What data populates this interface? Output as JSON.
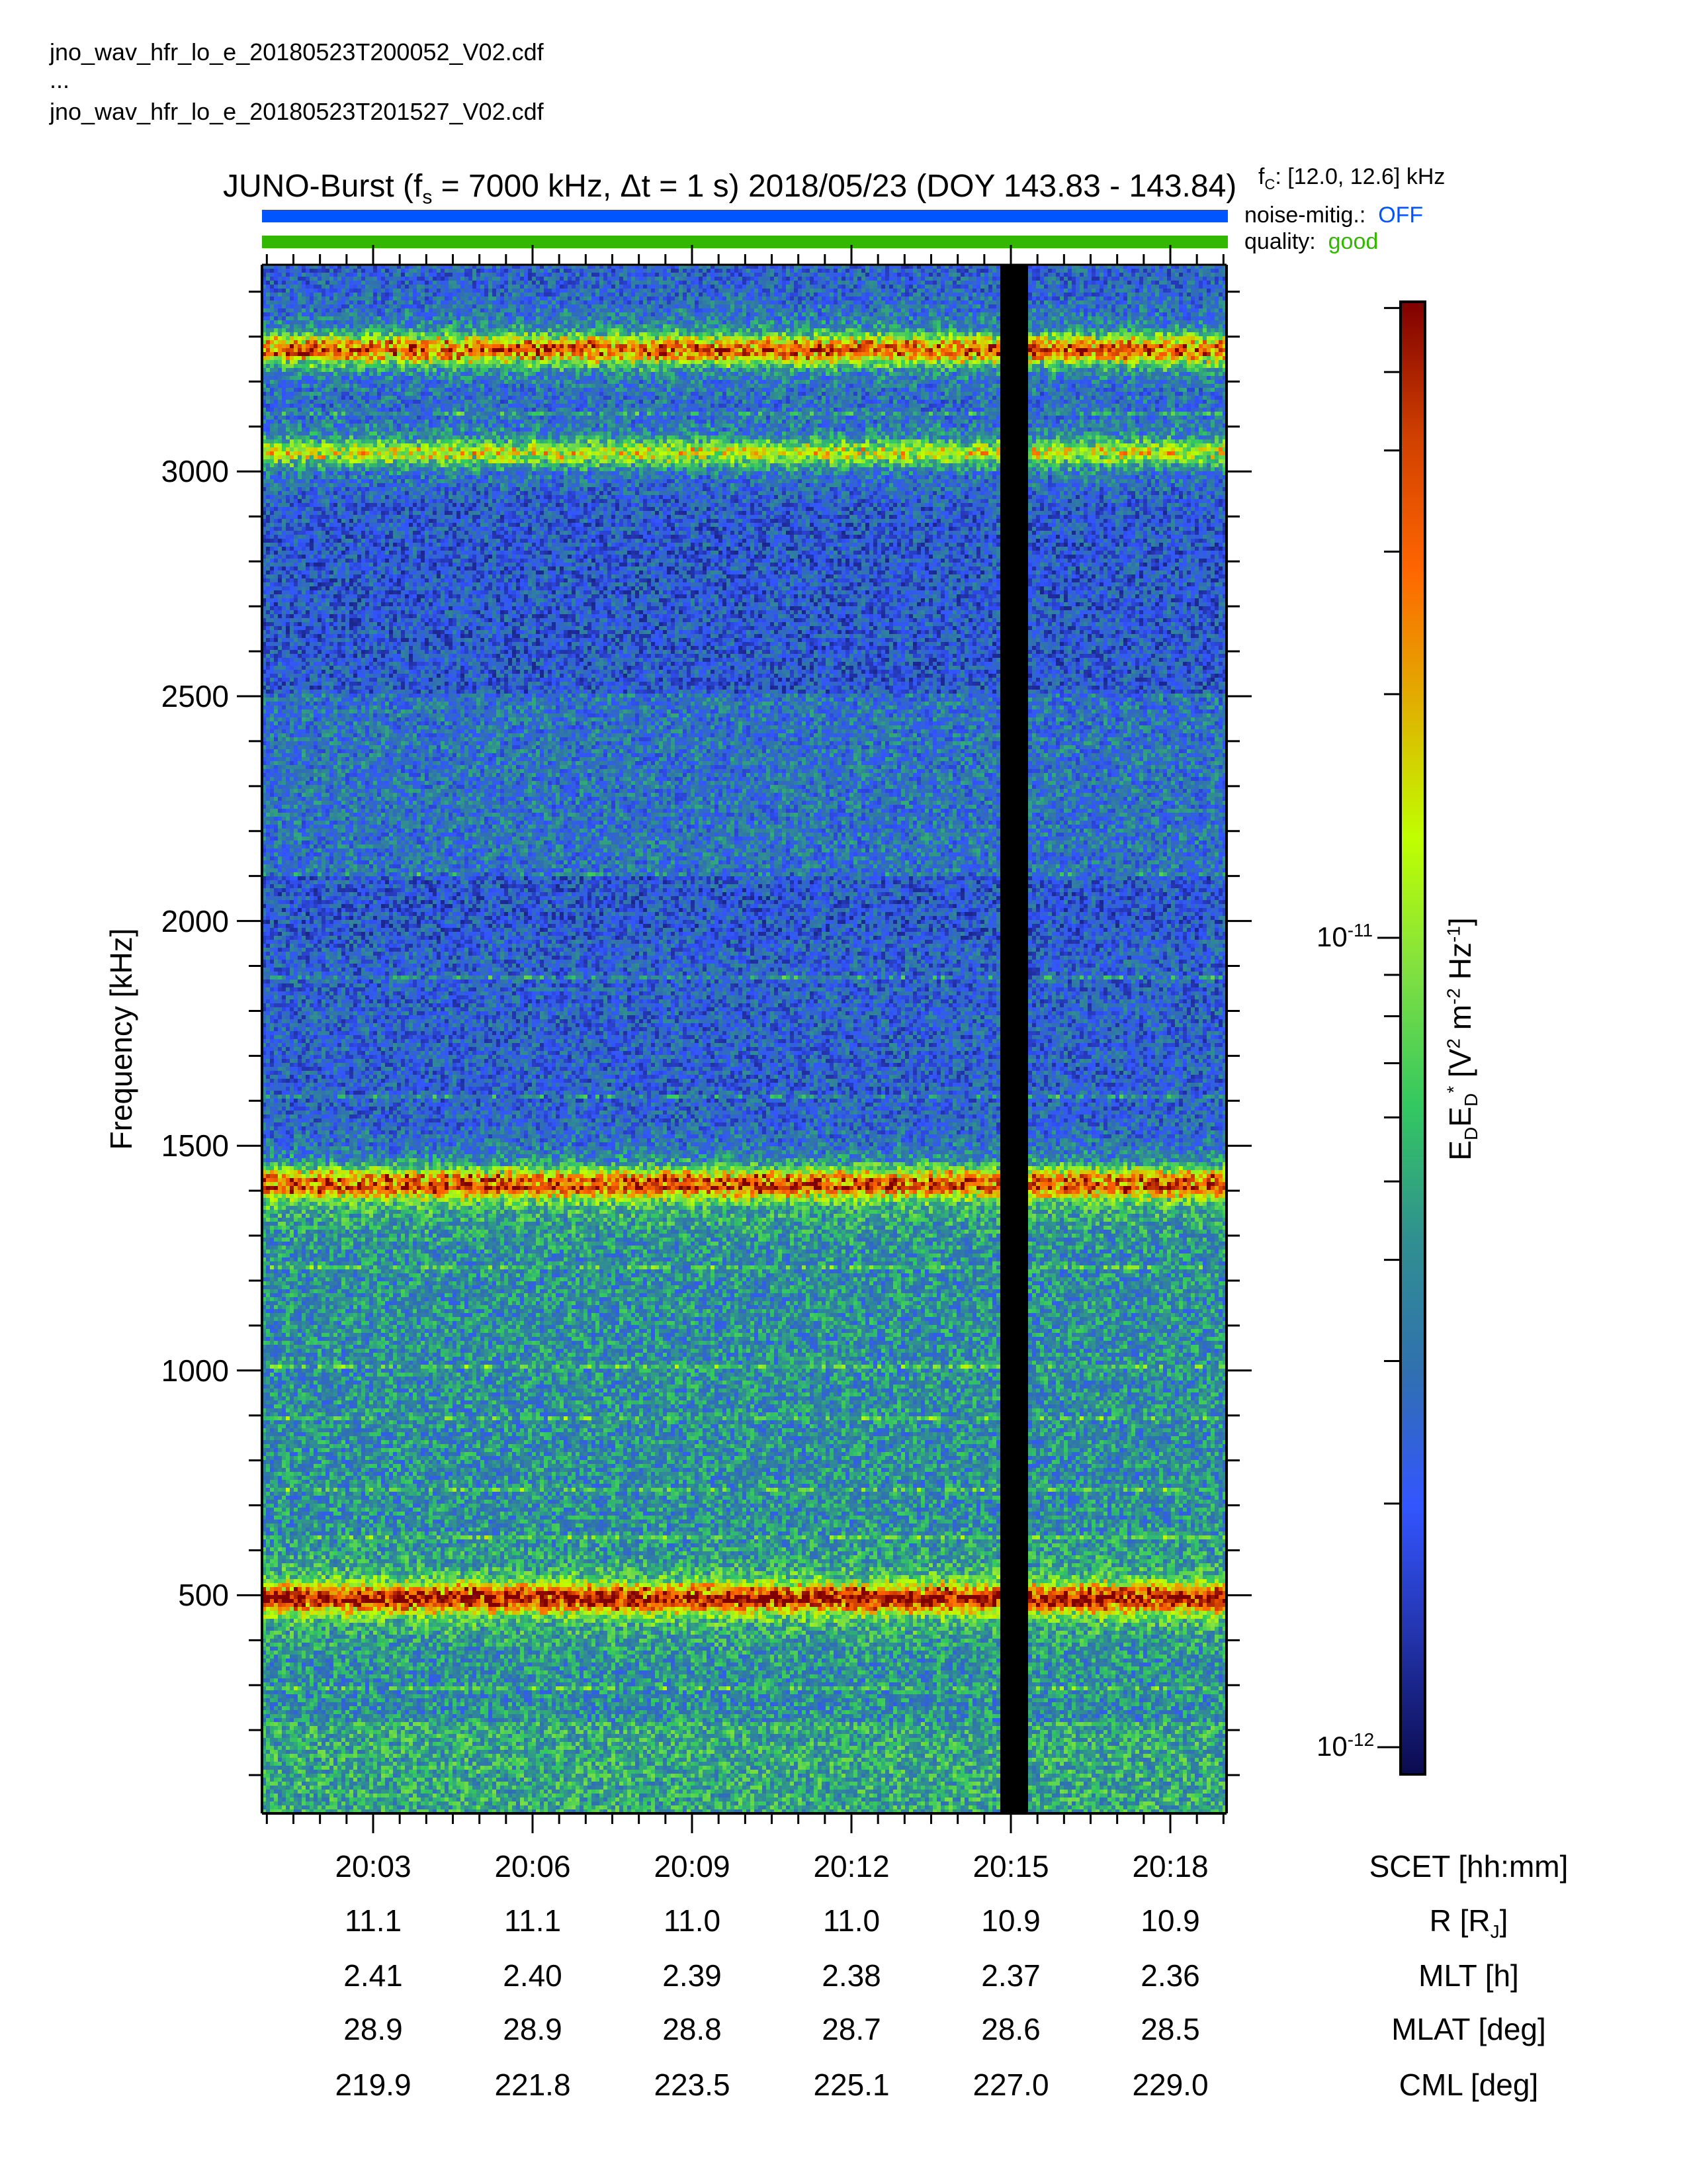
{
  "files": [
    "jno_wav_hfr_lo_e_20180523T200052_V02.cdf",
    "...",
    "jno_wav_hfr_lo_e_20180523T201527_V02.cdf"
  ],
  "title": {
    "part1": "JUNO-Burst (f",
    "sub": "s",
    "part2": " = 7000 kHz, Δt = 1 s)  2018/05/23 (DOY 143.83 - 143.84)"
  },
  "side": {
    "fc_label": "f",
    "fc_sub": "C",
    "fc_value": ": [12.0, 12.6] kHz",
    "noise_label": "noise-mitig.:",
    "noise_value": "OFF",
    "quality_label": "quality:",
    "quality_value": "good"
  },
  "colors": {
    "noise": "#0055ff",
    "quality": "#33b800"
  },
  "chart_data": {
    "type": "heatmap",
    "title": "JUNO-Burst (fs = 7000 kHz, Δt = 1 s) 2018/05/23 (DOY 143.83 - 143.84)",
    "xlabel": "SCET [hh:mm]",
    "ylabel": "Frequency [kHz]",
    "ylim": [
      0,
      3460
    ],
    "xlim_minutes": [
      -2.1,
      16.05
    ],
    "yticks": [
      500,
      1000,
      1500,
      2000,
      2500,
      3000
    ],
    "ytick_labels": [
      "500",
      "1000",
      "1500",
      "2000",
      "2500",
      "3000"
    ],
    "xticks_minutes": [
      0,
      3,
      6,
      9,
      12,
      15
    ],
    "colorbar": {
      "label": "EDED* [V2 m-2 Hz-1]",
      "label_parts": {
        "e1": "E",
        "s1": "D",
        "e2": "E",
        "s2": "D",
        "star": "*",
        "rest1": " [V",
        "p1": "2",
        "rest2": " m",
        "p2": "-2",
        "rest3": " Hz",
        "p3": "-1",
        "rest4": "]"
      },
      "scale": "log",
      "range": [
        1e-12,
        1.6e-10
      ],
      "ticks": [
        {
          "base": "10",
          "exp": "-11",
          "value": 1e-11
        },
        {
          "base": "10",
          "exp": "-12",
          "value": 1e-12
        }
      ],
      "colormap": [
        "#0b0b4f",
        "#2233aa",
        "#3355ff",
        "#3070b0",
        "#309090",
        "#33c860",
        "#80e040",
        "#c0ff00",
        "#e0b000",
        "#ff6600",
        "#d04000",
        "#800000"
      ]
    },
    "emission_bands_kHz": [
      {
        "freq": 3270,
        "level": "strong"
      },
      {
        "freq": 3040,
        "level": "moderate"
      },
      {
        "freq": 1410,
        "level": "strong"
      },
      {
        "freq": 480,
        "level": "strong"
      }
    ],
    "faint_lines_kHz": [
      3130,
      2100,
      1870,
      1600,
      1220,
      1000,
      880,
      720,
      620,
      280
    ],
    "data_gaps_minutes": [
      [
        1.45,
        1.5
      ],
      [
        11.8,
        12.35
      ]
    ],
    "ephemeris": {
      "labels": [
        "SCET [hh:mm]",
        "R [R",
        "MLT [h]",
        "MLAT [deg]",
        "CML [deg]"
      ],
      "r_sub": "J",
      "r_close": "]",
      "rows": [
        [
          "20:03",
          "20:06",
          "20:09",
          "20:12",
          "20:15",
          "20:18"
        ],
        [
          "11.1",
          "11.1",
          "11.0",
          "11.0",
          "10.9",
          "10.9"
        ],
        [
          "2.41",
          "2.40",
          "2.39",
          "2.38",
          "2.37",
          "2.36"
        ],
        [
          "28.9",
          "28.9",
          "28.8",
          "28.7",
          "28.6",
          "28.5"
        ],
        [
          "219.9",
          "221.8",
          "223.5",
          "225.1",
          "227.0",
          "229.0"
        ]
      ]
    }
  }
}
